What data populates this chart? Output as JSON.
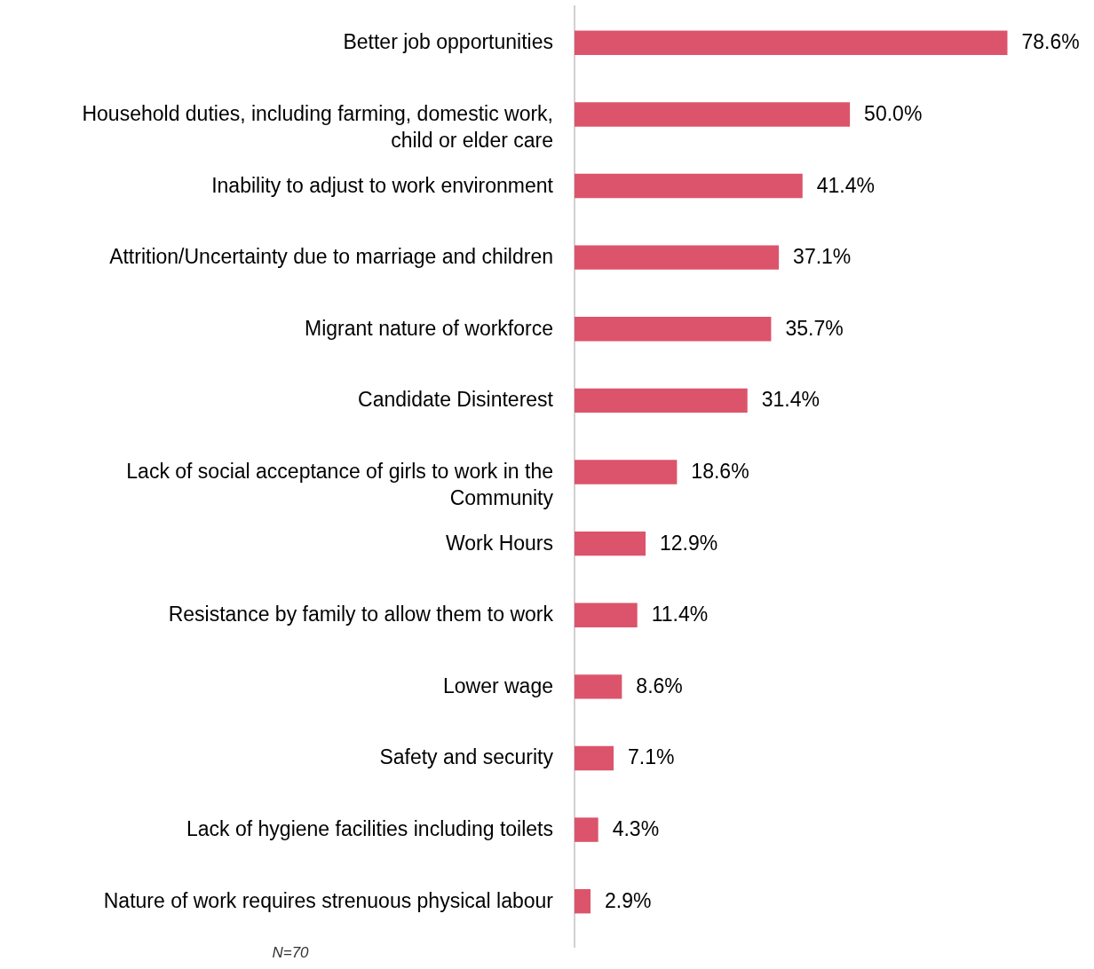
{
  "chart_data": {
    "type": "bar",
    "orientation": "horizontal",
    "categories": [
      "Better job opportunities",
      "Household duties, including farming, domestic work, child or elder care",
      "Inability to adjust to work environment",
      "Attrition/Uncertainty due to marriage and children",
      "Migrant nature of workforce",
      "Candidate Disinterest",
      "Lack of social acceptance of girls to work in the Community",
      "Work Hours",
      "Resistance by family to allow them to work",
      "Lower wage",
      "Safety and security",
      "Lack of hygiene facilities including toilets",
      "Nature of work requires strenuous physical labour"
    ],
    "values": [
      78.6,
      50.0,
      41.4,
      37.1,
      35.7,
      31.4,
      18.6,
      12.9,
      11.4,
      8.6,
      7.1,
      4.3,
      2.9
    ],
    "value_labels": [
      "78.6%",
      "50.0%",
      "41.4%",
      "37.1%",
      "35.7%",
      "31.4%",
      "18.6%",
      "12.9%",
      "11.4%",
      "8.6%",
      "7.1%",
      "4.3%",
      "2.9%"
    ],
    "color": "#dc546b",
    "annotations": [
      "N=70"
    ]
  }
}
